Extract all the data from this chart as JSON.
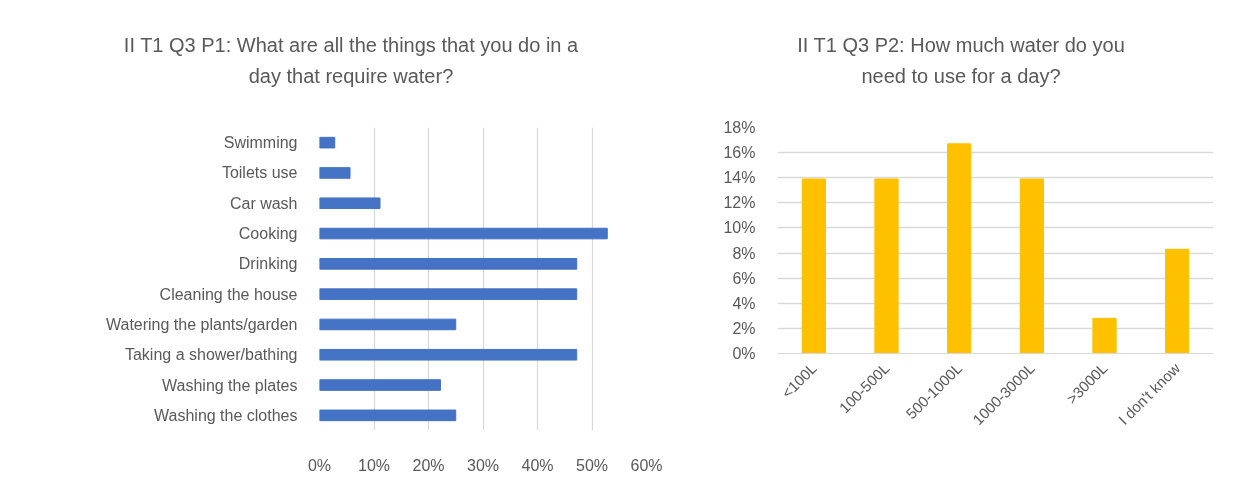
{
  "chart_data": [
    {
      "type": "bar",
      "orientation": "horizontal",
      "title": "II T1 Q3 P1: What are all the things that you do in a day that require water?",
      "categories": [
        "Swimming",
        "Toilets use",
        "Car wash",
        "Cooking",
        "Drinking",
        "Cleaning the house",
        "Watering the plants/garden",
        "Taking a shower/bathing",
        "Washing the plates",
        "Washing the clothes"
      ],
      "values": [
        2.8,
        5.6,
        11.1,
        52.8,
        47.2,
        47.2,
        25,
        47.2,
        22.2,
        25
      ],
      "color": "#4472c4",
      "xlim": [
        0,
        60
      ],
      "xticks": [
        {
          "value": 0,
          "label": "0%"
        },
        {
          "value": 10,
          "label": "10%"
        },
        {
          "value": 20,
          "label": "20%"
        },
        {
          "value": 30,
          "label": "30%"
        },
        {
          "value": 40,
          "label": "40%"
        },
        {
          "value": 50,
          "label": "50%"
        },
        {
          "value": 60,
          "label": "60%"
        }
      ],
      "grid": "x"
    },
    {
      "type": "bar",
      "title": "II T1 Q3 P2: How much water do you need to use for a day?",
      "categories": [
        "<100L",
        "100-500L",
        "500-1000L",
        "1000-3000L",
        ">3000L",
        "I don't know"
      ],
      "values": [
        13.9,
        13.9,
        16.7,
        13.9,
        2.8,
        8.3
      ],
      "color": "#ffc000",
      "ylim": [
        0,
        18
      ],
      "yticks": [
        {
          "value": 0,
          "label": "0%"
        },
        {
          "value": 2,
          "label": "2%"
        },
        {
          "value": 4,
          "label": "4%"
        },
        {
          "value": 6,
          "label": "6%"
        },
        {
          "value": 8,
          "label": "8%"
        },
        {
          "value": 10,
          "label": "10%"
        },
        {
          "value": 12,
          "label": "12%"
        },
        {
          "value": 14,
          "label": "14%"
        },
        {
          "value": 16,
          "label": "16%"
        },
        {
          "value": 18,
          "label": "18%"
        }
      ],
      "grid": "y"
    }
  ]
}
